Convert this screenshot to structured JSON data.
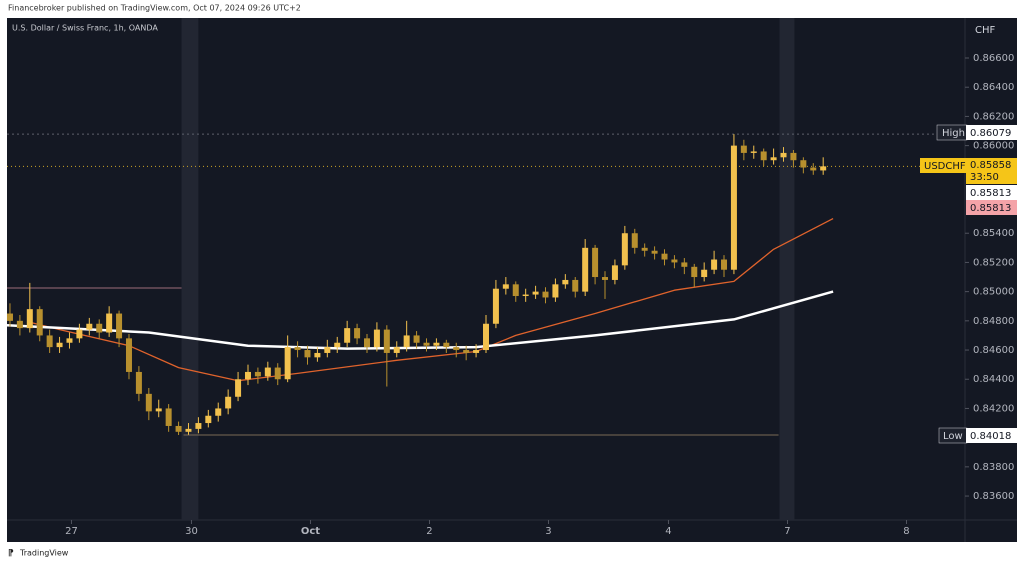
{
  "header": "Financebroker published on TradingView.com, Oct 07, 2024 09:26 UTC+2",
  "footer": "TradingView",
  "chart_data": {
    "type": "candlestick",
    "title": "U.S. Dollar / Swiss Franc, 1h, OANDA",
    "currency": "CHF",
    "up_color": "#f2c14e",
    "down_color": "#b8902e",
    "open": [
      0.8485,
      0.848,
      0.8475,
      0.8488,
      0.847,
      0.8462,
      0.8465,
      0.8468,
      0.8474,
      0.8478,
      0.8472,
      0.8485,
      0.8468,
      0.8445,
      0.843,
      0.8418,
      0.842,
      0.8408,
      0.8404,
      0.8406,
      0.841,
      0.8415,
      0.842,
      0.8428,
      0.844,
      0.8445,
      0.8442,
      0.8448,
      0.844,
      0.8462,
      0.846,
      0.8455,
      0.8458,
      0.8462,
      0.8465,
      0.8475,
      0.8468,
      0.8462,
      0.8474,
      0.8458,
      0.8462,
      0.847,
      0.8465,
      0.8463,
      0.8465,
      0.8462,
      0.846,
      0.8458,
      0.846,
      0.8478,
      0.8502,
      0.8505,
      0.8497,
      0.8498,
      0.85,
      0.8496,
      0.8505,
      0.8508,
      0.85,
      0.853,
      0.851,
      0.8508,
      0.8518,
      0.854,
      0.853,
      0.8528,
      0.8526,
      0.8522,
      0.852,
      0.8517,
      0.851,
      0.8515,
      0.8522,
      0.8515,
      0.86,
      0.8595,
      0.8596,
      0.859,
      0.8592,
      0.8595,
      0.859,
      0.8585,
      0.8583
    ],
    "high": [
      0.8492,
      0.8484,
      0.8506,
      0.849,
      0.8474,
      0.8469,
      0.8472,
      0.8478,
      0.8482,
      0.8481,
      0.849,
      0.8487,
      0.8471,
      0.8449,
      0.8434,
      0.8426,
      0.8423,
      0.8411,
      0.841,
      0.8414,
      0.8419,
      0.8424,
      0.8433,
      0.8445,
      0.845,
      0.8448,
      0.8452,
      0.8451,
      0.847,
      0.8466,
      0.8463,
      0.8462,
      0.8467,
      0.8469,
      0.848,
      0.8478,
      0.8471,
      0.8479,
      0.8477,
      0.8466,
      0.848,
      0.8473,
      0.8468,
      0.8468,
      0.8467,
      0.8465,
      0.8463,
      0.8464,
      0.8484,
      0.8508,
      0.851,
      0.8507,
      0.8502,
      0.8504,
      0.8503,
      0.8509,
      0.8512,
      0.851,
      0.8536,
      0.8532,
      0.8514,
      0.8522,
      0.8545,
      0.8543,
      0.8533,
      0.8531,
      0.8529,
      0.8525,
      0.8523,
      0.8519,
      0.852,
      0.8528,
      0.8525,
      0.86079,
      0.8604,
      0.86,
      0.8598,
      0.8598,
      0.8599,
      0.8597,
      0.8592,
      0.8588,
      0.8592
    ],
    "low": [
      0.8476,
      0.847,
      0.8472,
      0.8466,
      0.8458,
      0.8458,
      0.8461,
      0.8465,
      0.847,
      0.8468,
      0.8469,
      0.8462,
      0.844,
      0.8425,
      0.8412,
      0.8414,
      0.8404,
      0.84018,
      0.8402,
      0.8403,
      0.8407,
      0.8411,
      0.8416,
      0.8425,
      0.8436,
      0.8437,
      0.8439,
      0.8436,
      0.8438,
      0.8455,
      0.845,
      0.8452,
      0.8455,
      0.8458,
      0.8462,
      0.8464,
      0.8458,
      0.8459,
      0.8435,
      0.8455,
      0.8459,
      0.8461,
      0.8459,
      0.846,
      0.8458,
      0.8455,
      0.8453,
      0.8455,
      0.8458,
      0.8475,
      0.8498,
      0.8493,
      0.8493,
      0.8495,
      0.8492,
      0.8493,
      0.8502,
      0.8496,
      0.8497,
      0.8505,
      0.8495,
      0.8505,
      0.8515,
      0.8526,
      0.8524,
      0.8522,
      0.8518,
      0.8516,
      0.8512,
      0.8503,
      0.8507,
      0.8512,
      0.851,
      0.8512,
      0.859,
      0.8591,
      0.8586,
      0.8587,
      0.8589,
      0.8585,
      0.8581,
      0.858,
      0.858
    ],
    "close": [
      0.848,
      0.8475,
      0.8488,
      0.847,
      0.8462,
      0.8465,
      0.8468,
      0.8474,
      0.8478,
      0.8472,
      0.8485,
      0.8468,
      0.8445,
      0.843,
      0.8418,
      0.842,
      0.8408,
      0.8404,
      0.8406,
      0.841,
      0.8415,
      0.842,
      0.8428,
      0.844,
      0.8445,
      0.8442,
      0.8448,
      0.844,
      0.8462,
      0.846,
      0.8455,
      0.8458,
      0.8462,
      0.8465,
      0.8475,
      0.8468,
      0.8462,
      0.8474,
      0.8458,
      0.8462,
      0.847,
      0.8465,
      0.8463,
      0.8465,
      0.8462,
      0.846,
      0.8458,
      0.846,
      0.8478,
      0.8502,
      0.8505,
      0.8497,
      0.8498,
      0.85,
      0.8496,
      0.8505,
      0.8508,
      0.85,
      0.853,
      0.851,
      0.8508,
      0.8518,
      0.854,
      0.853,
      0.8528,
      0.8526,
      0.8522,
      0.852,
      0.8517,
      0.851,
      0.8515,
      0.8522,
      0.8515,
      0.86,
      0.8595,
      0.8596,
      0.859,
      0.8592,
      0.8595,
      0.859,
      0.8585,
      0.8583,
      0.85858
    ],
    "xlim": [
      -0.3,
      96.3
    ],
    "xticks": [
      {
        "value": 6.2,
        "label": "27"
      },
      {
        "value": 18.3,
        "label": "30"
      },
      {
        "value": 30.3,
        "label": "Oct"
      },
      {
        "value": 42.3,
        "label": "2"
      },
      {
        "value": 54.3,
        "label": "3"
      },
      {
        "value": 66.4,
        "label": "4"
      },
      {
        "value": 78.4,
        "label": "7"
      },
      {
        "value": 90.4,
        "label": "8"
      }
    ],
    "ylim": [
      0.83436,
      0.86874
    ],
    "yticks": [
      {
        "value": 0.836,
        "label": "0.83600"
      },
      {
        "value": 0.838,
        "label": "0.83800"
      },
      {
        "value": 0.842,
        "label": "0.84200"
      },
      {
        "value": 0.844,
        "label": "0.84400"
      },
      {
        "value": 0.846,
        "label": "0.84600"
      },
      {
        "value": 0.848,
        "label": "0.84800"
      },
      {
        "value": 0.85,
        "label": "0.85000"
      },
      {
        "value": 0.852,
        "label": "0.85200"
      },
      {
        "value": 0.854,
        "label": "0.85400"
      },
      {
        "value": 0.86,
        "label": "0.86000"
      },
      {
        "value": 0.862,
        "label": "0.86200"
      },
      {
        "value": 0.864,
        "label": "0.86400"
      },
      {
        "value": 0.866,
        "label": "0.86600"
      }
    ],
    "grid": false,
    "sessions": [
      [
        17.3,
        19.0
      ],
      [
        77.6,
        79.1
      ]
    ],
    "lines": [
      {
        "color": "#e0632c",
        "x": [
          2,
          5,
          12,
          17,
          23,
          29,
          39,
          47,
          51,
          59,
          67,
          73,
          77,
          83
        ],
        "values": [
          0.8479,
          0.8474,
          0.8463,
          0.8448,
          0.8439,
          0.8444,
          0.8453,
          0.8459,
          0.847,
          0.8485,
          0.8501,
          0.8507,
          0.8529,
          0.855
        ]
      },
      {
        "color": "#ffffff",
        "x": [
          -0.3,
          14,
          24,
          34,
          47,
          59,
          73,
          83
        ],
        "values": [
          0.8477,
          0.8472,
          0.8463,
          0.8461,
          0.8462,
          0.847,
          0.8481,
          0.85
        ]
      }
    ],
    "levels": [
      {
        "value": 0.86079,
        "color": "#5d606b",
        "dash": "2 3",
        "x": [
          -0.3,
          96.3
        ]
      },
      {
        "value": 0.85858,
        "color": "#c9a227",
        "dash": "1 3",
        "x": [
          -0.3,
          96.3
        ]
      },
      {
        "value": 0.84018,
        "color": "#7a6a55",
        "dash": "",
        "x": [
          17.5,
          77.5
        ]
      },
      {
        "value": 0.85025,
        "color": "#9c6b7a",
        "dash": "",
        "x": [
          -0.3,
          17.3
        ]
      }
    ],
    "price_labels": [
      {
        "name": "High",
        "price": "0.86079"
      },
      {
        "name": "USDCHF",
        "price": "0.85858",
        "countdown": "33:50"
      },
      {
        "price": "0.85813"
      },
      {
        "price": "0.85813"
      },
      {
        "name": "Low",
        "price": "0.84018"
      }
    ]
  }
}
